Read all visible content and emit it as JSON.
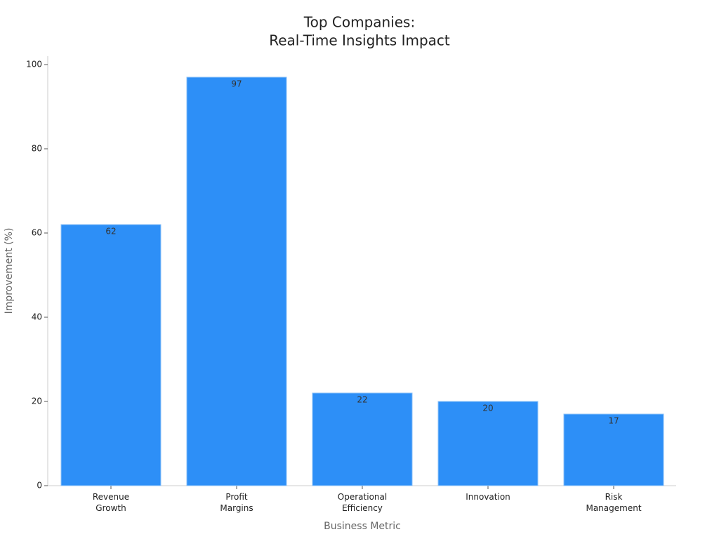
{
  "chart_data": {
    "type": "bar",
    "title": [
      "Top Companies:",
      "Real-Time Insights Impact"
    ],
    "x_label": "Business Metric",
    "y_label": "Improvement (%)",
    "categories": [
      "Revenue Growth",
      "Profit Margins",
      "Operational Efficiency",
      "Innovation",
      "Risk Management"
    ],
    "values": [
      62,
      97,
      22,
      20,
      17
    ],
    "color": "#2d8ff7",
    "ylim": [
      0,
      100
    ],
    "yticks": [
      0,
      20,
      40,
      60,
      80,
      100
    ],
    "grid": false
  }
}
